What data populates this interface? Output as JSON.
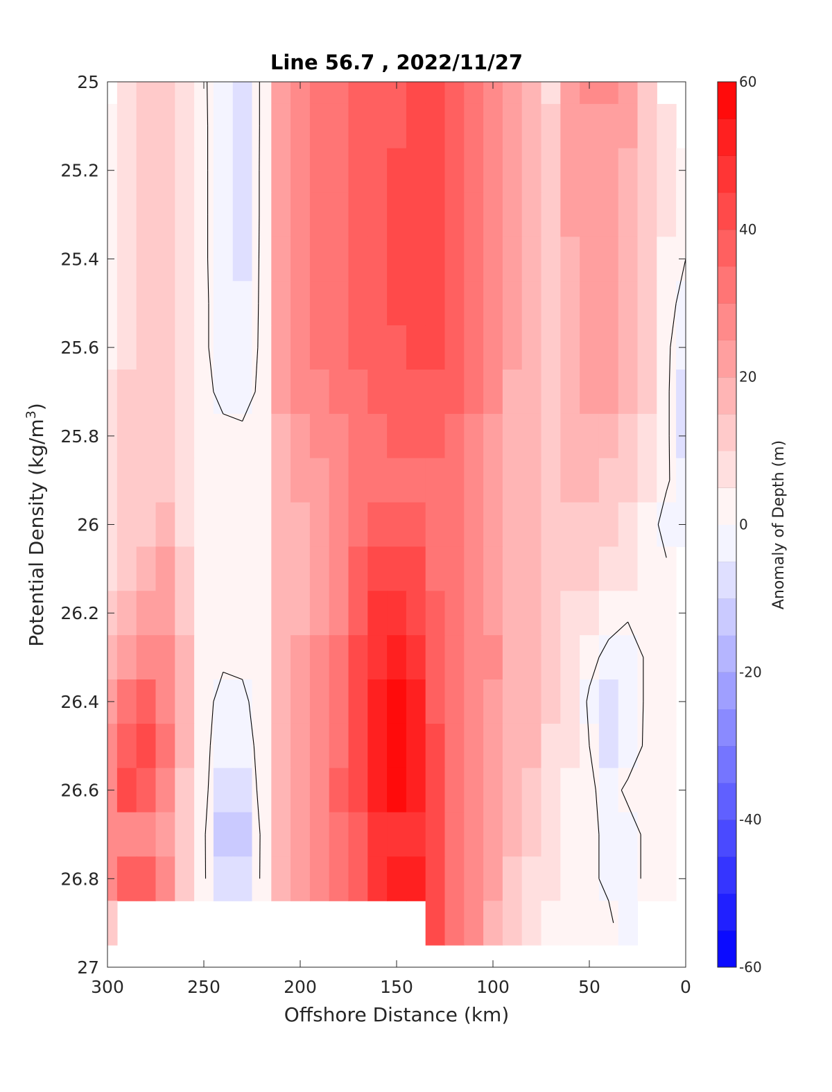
{
  "chart_data": {
    "type": "heatmap",
    "title": "Line 56.7 , 2022/11/27",
    "xlabel": "Offshore Distance (km)",
    "ylabel_main": "Potential Density (kg/m",
    "ylabel_sup": "3",
    "ylabel_close": ")",
    "xlim": [
      300,
      0
    ],
    "ylim": [
      25,
      27
    ],
    "x_ticks": [
      "300",
      "250",
      "200",
      "150",
      "100",
      "50",
      "0"
    ],
    "y_ticks": [
      "25",
      "25.2",
      "25.4",
      "25.6",
      "25.8",
      "26",
      "26.2",
      "26.4",
      "26.6",
      "26.8",
      "27"
    ],
    "colorbar": {
      "label": "Anomaly of Depth (m)",
      "range": [
        -60,
        60
      ],
      "ticks": [
        "60",
        "40",
        "20",
        "0",
        "-20",
        "-40",
        "-60"
      ],
      "levels": 24,
      "low_color": "#0000ff",
      "mid_color": "#ffffff",
      "high_color": "#ff0000"
    },
    "x": [
      300,
      290,
      280,
      270,
      260,
      250,
      240,
      230,
      220,
      210,
      200,
      190,
      180,
      170,
      160,
      150,
      140,
      130,
      120,
      110,
      100,
      90,
      80,
      70,
      60,
      50,
      40,
      30,
      20,
      10,
      0
    ],
    "y": [
      25.0,
      25.1,
      25.2,
      25.3,
      25.4,
      25.5,
      25.6,
      25.7,
      25.8,
      25.9,
      26.0,
      26.1,
      26.2,
      26.3,
      26.4,
      26.5,
      26.6,
      26.7,
      26.8,
      26.9,
      27.0
    ],
    "z": [
      [
        null,
        9,
        11,
        13,
        8,
        1,
        -5,
        -8,
        1,
        22,
        26,
        30,
        33,
        35,
        36,
        38,
        40,
        40,
        36,
        32,
        27,
        20,
        15,
        8,
        20,
        25,
        28,
        22,
        12,
        null,
        null
      ],
      [
        2,
        9,
        12,
        14,
        8,
        1,
        -4,
        -8,
        1,
        23,
        27,
        31,
        34,
        36,
        38,
        39,
        41,
        41,
        38,
        33,
        28,
        21,
        16,
        10,
        21,
        24,
        22,
        20,
        12,
        8,
        null
      ],
      [
        2,
        9,
        12,
        14,
        8,
        1,
        -4,
        -7,
        1,
        24,
        28,
        31,
        34,
        37,
        38,
        40,
        42,
        42,
        38,
        33,
        28,
        21,
        16,
        12,
        21,
        23,
        21,
        19,
        12,
        8,
        4
      ],
      [
        2,
        9,
        13,
        14,
        8,
        1,
        -4,
        -7,
        1,
        24,
        28,
        31,
        34,
        37,
        38,
        40,
        42,
        42,
        38,
        33,
        28,
        21,
        16,
        12,
        20,
        22,
        21,
        18,
        12,
        8,
        4
      ],
      [
        2,
        9,
        13,
        14,
        8,
        1,
        -4,
        -6,
        1,
        24,
        28,
        31,
        34,
        36,
        38,
        40,
        42,
        42,
        38,
        33,
        27,
        21,
        16,
        12,
        19,
        22,
        21,
        18,
        12,
        4,
        0
      ],
      [
        1,
        9,
        13,
        14,
        8,
        1,
        -3,
        -5,
        1,
        23,
        28,
        31,
        34,
        36,
        38,
        40,
        41,
        41,
        38,
        33,
        27,
        21,
        16,
        12,
        19,
        22,
        21,
        18,
        12,
        2,
        -2
      ],
      [
        1,
        9,
        13,
        14,
        8,
        1,
        -3,
        -4,
        1,
        22,
        27,
        31,
        33,
        35,
        37,
        39,
        41,
        40,
        37,
        32,
        26,
        20,
        16,
        12,
        18,
        22,
        22,
        17,
        11,
        1,
        -4
      ],
      [
        7,
        10,
        13,
        13,
        8,
        1,
        -1,
        -2,
        1,
        20,
        25,
        28,
        31,
        33,
        35,
        37,
        39,
        38,
        35,
        30,
        25,
        19,
        16,
        12,
        17,
        21,
        21,
        16,
        10,
        1,
        -6
      ],
      [
        9,
        11,
        13,
        13,
        8,
        1,
        1,
        1,
        2,
        18,
        22,
        25,
        28,
        31,
        33,
        35,
        36,
        35,
        33,
        29,
        24,
        19,
        16,
        12,
        16,
        19,
        17,
        14,
        9,
        1,
        -6
      ],
      [
        9,
        11,
        13,
        13,
        8,
        1,
        1,
        1,
        2,
        16,
        20,
        23,
        27,
        31,
        33,
        34,
        34,
        33,
        31,
        28,
        24,
        19,
        16,
        12,
        15,
        16,
        14,
        11,
        7,
        1,
        -5
      ],
      [
        9,
        12,
        14,
        15,
        9,
        1,
        1,
        1,
        2,
        15,
        19,
        23,
        27,
        33,
        37,
        37,
        35,
        32,
        30,
        27,
        23,
        19,
        16,
        12,
        14,
        13,
        11,
        8,
        4,
        -3,
        -4
      ],
      [
        9,
        13,
        17,
        20,
        12,
        2,
        1,
        1,
        2,
        15,
        19,
        23,
        28,
        36,
        43,
        44,
        40,
        34,
        30,
        27,
        23,
        19,
        16,
        12,
        12,
        10,
        8,
        5,
        2,
        1,
        null
      ],
      [
        12,
        17,
        22,
        24,
        14,
        2,
        1,
        1,
        2,
        15,
        19,
        24,
        29,
        38,
        47,
        49,
        44,
        35,
        30,
        27,
        24,
        19,
        16,
        11,
        9,
        6,
        3,
        1,
        1,
        1,
        null
      ],
      [
        18,
        23,
        28,
        27,
        15,
        2,
        1,
        1,
        2,
        15,
        20,
        25,
        30,
        40,
        49,
        52,
        47,
        37,
        30,
        28,
        25,
        19,
        16,
        10,
        7,
        2,
        -2,
        -4,
        1,
        1,
        null
      ],
      [
        23,
        31,
        35,
        29,
        15,
        2,
        -2,
        -1,
        2,
        15,
        20,
        26,
        32,
        41,
        51,
        55,
        50,
        38,
        30,
        28,
        24,
        19,
        16,
        10,
        6,
        -1,
        -7,
        -4,
        1,
        1,
        null
      ],
      [
        28,
        38,
        40,
        30,
        15,
        2,
        -4,
        -3,
        2,
        16,
        21,
        27,
        34,
        42,
        53,
        59,
        54,
        40,
        30,
        27,
        22,
        18,
        15,
        9,
        5,
        0,
        -6,
        -3,
        1,
        1,
        null
      ],
      [
        29,
        40,
        38,
        28,
        14,
        2,
        -7,
        -6,
        2,
        16,
        22,
        28,
        35,
        43,
        54,
        59,
        54,
        40,
        30,
        26,
        22,
        17,
        13,
        8,
        4,
        1,
        -2,
        1,
        1,
        1,
        null
      ],
      [
        27,
        29,
        25,
        20,
        10,
        1,
        -12,
        -11,
        1,
        16,
        22,
        28,
        33,
        37,
        45,
        48,
        47,
        41,
        32,
        26,
        20,
        15,
        10,
        6,
        3,
        1,
        -1,
        -2,
        1,
        1,
        null
      ],
      [
        28,
        35,
        36,
        26,
        12,
        1,
        -10,
        -9,
        1,
        17,
        23,
        29,
        34,
        39,
        47,
        52,
        50,
        43,
        33,
        26,
        20,
        14,
        8,
        5,
        3,
        1,
        -1,
        -2,
        1,
        1,
        null
      ],
      [
        14,
        null,
        null,
        null,
        null,
        null,
        null,
        null,
        null,
        null,
        null,
        null,
        null,
        null,
        null,
        null,
        null,
        40,
        33,
        26,
        19,
        13,
        7,
        4,
        2,
        1,
        1,
        -3,
        null,
        null,
        null
      ],
      [
        null,
        null,
        null,
        null,
        null,
        null,
        null,
        null,
        null,
        null,
        null,
        null,
        null,
        null,
        null,
        null,
        null,
        null,
        null,
        null,
        null,
        null,
        null,
        null,
        null,
        null,
        null,
        null,
        null,
        null,
        null
      ]
    ]
  }
}
